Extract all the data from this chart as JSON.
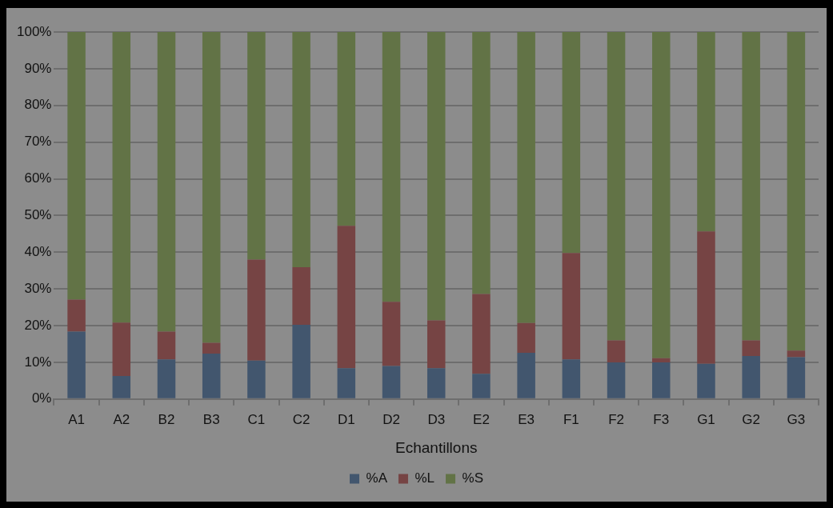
{
  "chart_data": {
    "type": "bar",
    "stacked": true,
    "xlabel": "Echantillons",
    "categories": [
      "A1",
      "A2",
      "B2",
      "B3",
      "C1",
      "C2",
      "D1",
      "D2",
      "D3",
      "E2",
      "E3",
      "F1",
      "F2",
      "F3",
      "G1",
      "G2",
      "G3"
    ],
    "series": [
      {
        "name": "%A",
        "color": "#42566e",
        "values": [
          18.4,
          6.3,
          10.8,
          12.4,
          10.5,
          20.2,
          8.4,
          9.0,
          8.4,
          6.9,
          12.6,
          10.8,
          10.0,
          10.0,
          9.6,
          11.7,
          11.4
        ]
      },
      {
        "name": "%L",
        "color": "#764444",
        "values": [
          8.7,
          14.5,
          7.6,
          2.9,
          27.5,
          15.7,
          38.8,
          17.5,
          13.0,
          21.7,
          8.1,
          29.0,
          6.0,
          1.1,
          36.1,
          4.3,
          1.8
        ]
      },
      {
        "name": "%S",
        "color": "#627346",
        "values": [
          72.9,
          79.2,
          81.6,
          84.7,
          62.0,
          64.1,
          52.8,
          73.5,
          78.6,
          71.4,
          79.3,
          60.2,
          84.0,
          88.9,
          54.3,
          84.0,
          86.8
        ]
      }
    ],
    "ylim": [
      0,
      100
    ],
    "yticks": [
      {
        "value": 0,
        "label": "0%"
      },
      {
        "value": 10,
        "label": "10%"
      },
      {
        "value": 20,
        "label": "20%"
      },
      {
        "value": 30,
        "label": "30%"
      },
      {
        "value": 40,
        "label": "40%"
      },
      {
        "value": 50,
        "label": "50%"
      },
      {
        "value": 60,
        "label": "60%"
      },
      {
        "value": 70,
        "label": "70%"
      },
      {
        "value": 80,
        "label": "80%"
      },
      {
        "value": 90,
        "label": "90%"
      },
      {
        "value": 100,
        "label": "100%"
      }
    ],
    "grid": "y",
    "legend": "bottom"
  }
}
